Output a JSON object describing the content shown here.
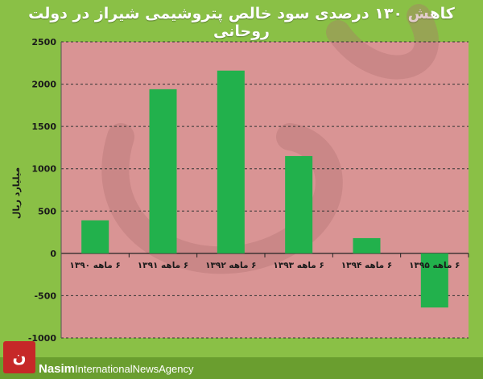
{
  "title": "کاهش ۱۳۰ درصدی سود خالص پتروشیمی شیراز در دولت روحانی",
  "brand": {
    "name": "Nasim",
    "tagline": "InternationalNewsAgency",
    "logo_glyph": "نسیم"
  },
  "colors": {
    "background": "#8ac046",
    "plot_area": "#d99494",
    "bar": "#22b14c"
  },
  "chart_data": {
    "type": "bar",
    "title": "کاهش ۱۳۰ درصدی سود خالص پتروشیمی شیراز در دولت روحانی",
    "ylabel": "میلیارد ریال",
    "xlabel": "",
    "categories": [
      "۶ ماهه ۱۳۹۰",
      "۶ ماهه ۱۳۹۱",
      "۶ ماهه ۱۳۹۲",
      "۶ ماهه ۱۳۹۳",
      "۶ ماهه ۱۳۹۴",
      "۶ ماهه ۱۳۹۵"
    ],
    "values": [
      390,
      1940,
      2160,
      1150,
      180,
      -640
    ],
    "ylim": [
      -1000,
      2500
    ],
    "yticks": [
      -1000,
      -500,
      0,
      500,
      1000,
      1500,
      2000,
      2500
    ],
    "ytick_labels": [
      "-1000",
      "-500",
      "0",
      "500",
      "1000",
      "1500",
      "2000",
      "2500"
    ],
    "grid": true,
    "legend": "none"
  }
}
